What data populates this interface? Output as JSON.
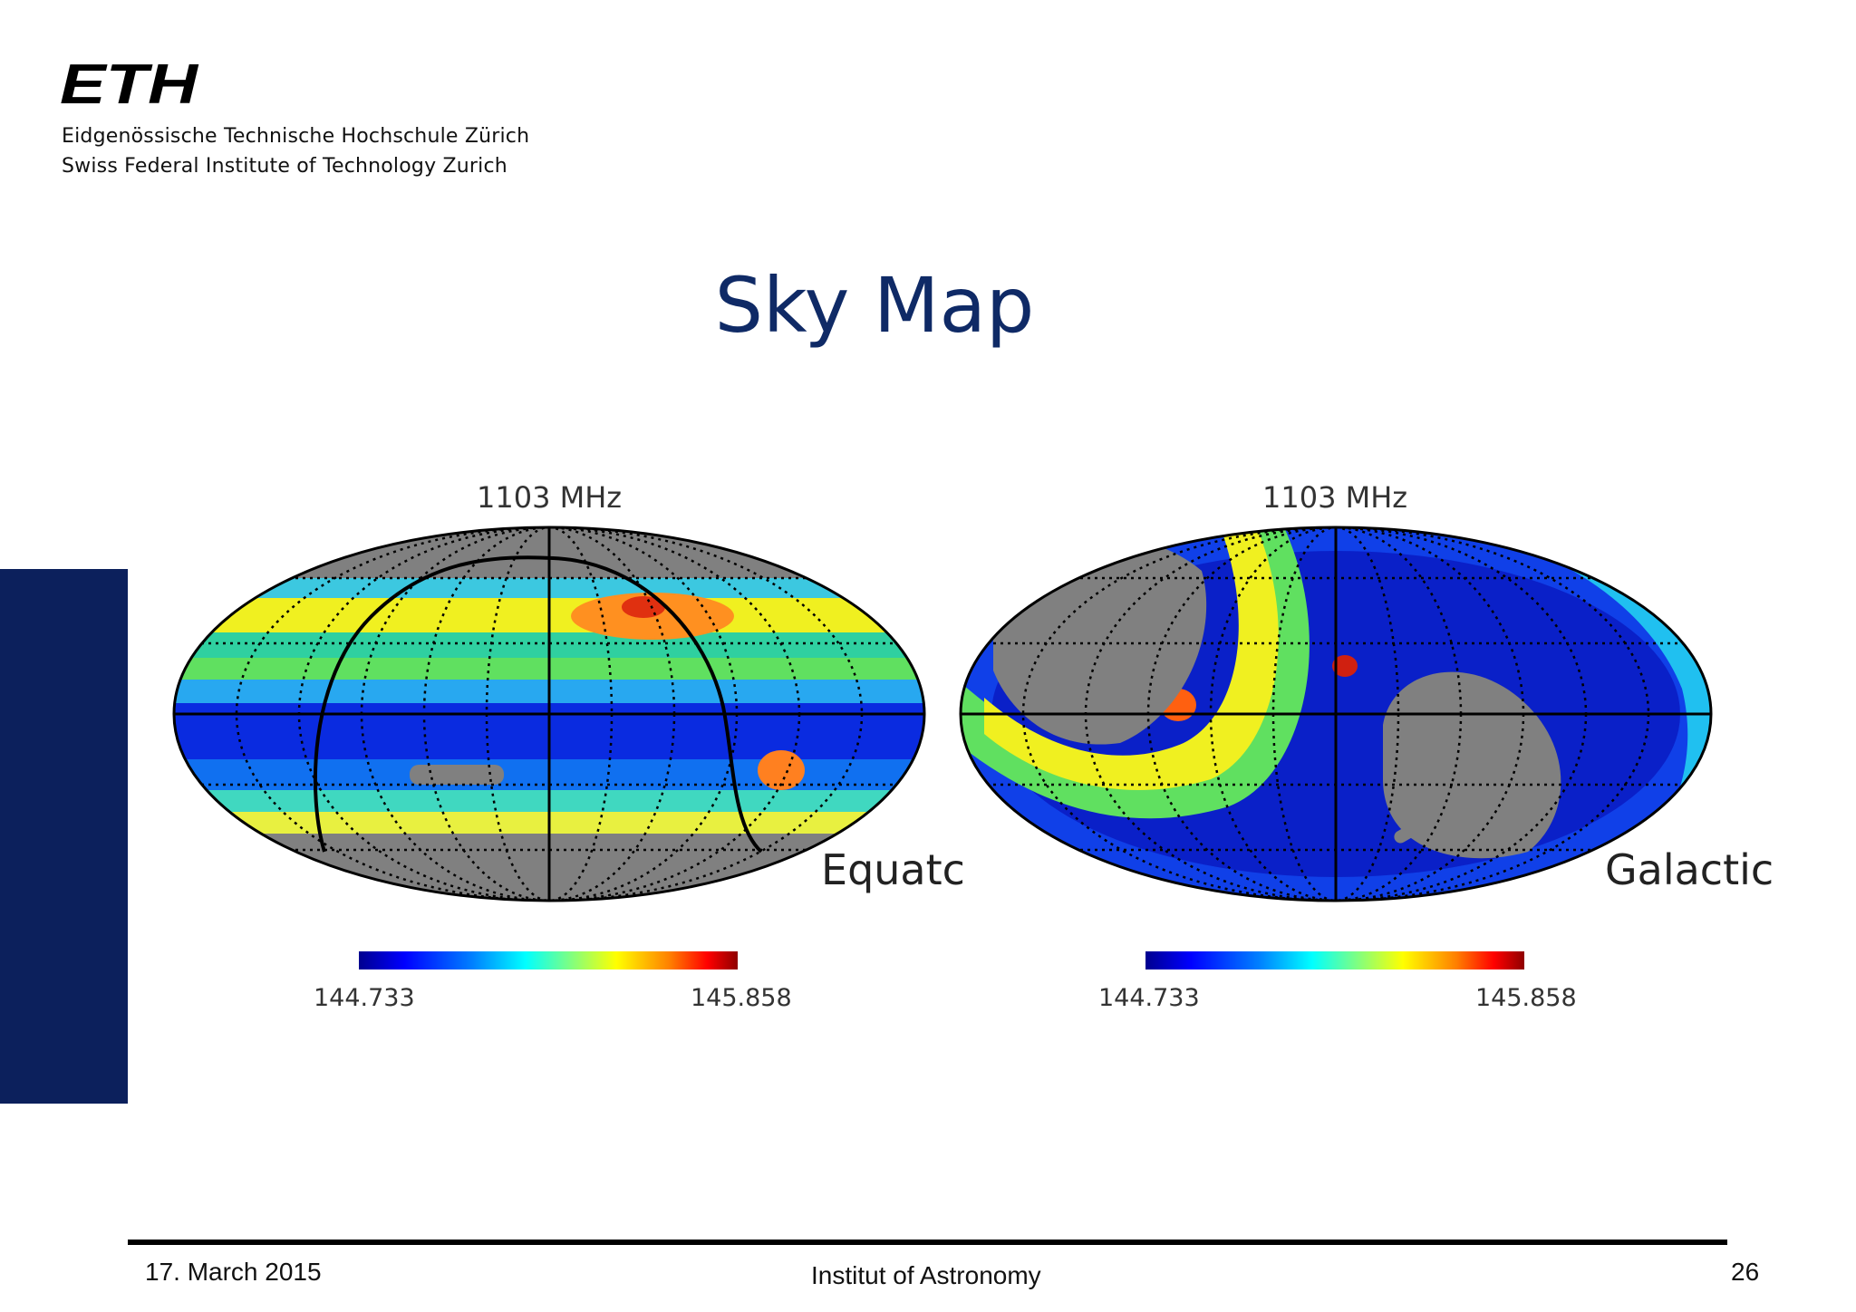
{
  "header": {
    "logo_text": "ETH",
    "institution_line1": "Eidgenössische Technische Hochschule Zürich",
    "institution_line2": "Swiss Federal Institute of Technology Zurich"
  },
  "slide": {
    "title": "Sky Map"
  },
  "maps": [
    {
      "frequency_label": "1103 MHz",
      "frame_label": "Equatc",
      "colorbar_min": "144.733",
      "colorbar_max": "145.858"
    },
    {
      "frequency_label": "1103 MHz",
      "frame_label": "Galactic",
      "colorbar_min": "144.733",
      "colorbar_max": "145.858"
    }
  ],
  "footer": {
    "date": "17. March 2015",
    "institute": "Institut of Astronomy",
    "page_number": "26"
  },
  "colors": {
    "title": "#0f2a66",
    "side_bar": "#0c205c",
    "mask_gray": "#808080"
  }
}
